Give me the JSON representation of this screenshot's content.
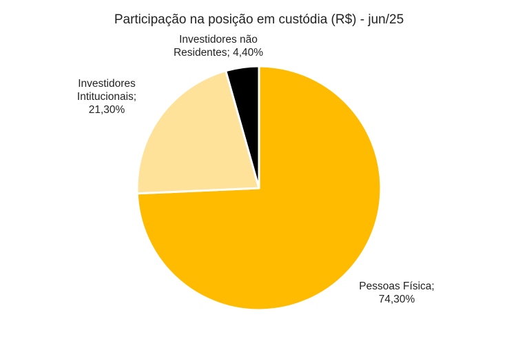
{
  "chart_data": {
    "type": "pie",
    "title": "Participação na posição em custódia (R$) - jun/25",
    "categories": [
      "Pessoas Física",
      "Investidores Intitucionais",
      "Investidores não Residentes"
    ],
    "values": [
      74.3,
      21.3,
      4.4
    ],
    "unit": "%",
    "start_angle_deg": 0,
    "direction": "clockwise",
    "colors": [
      "#FFBB00",
      "#FFE299",
      "#000000"
    ],
    "slice_border_color": "#FFFFFF",
    "legend": "none",
    "labels": [
      {
        "lines": [
          "Pessoas Física;",
          "74,30%"
        ]
      },
      {
        "lines": [
          "Investidores",
          "Intitucionais;",
          "21,30%"
        ]
      },
      {
        "lines": [
          "Investidores não",
          "Residentes; 4,40%"
        ]
      }
    ]
  }
}
